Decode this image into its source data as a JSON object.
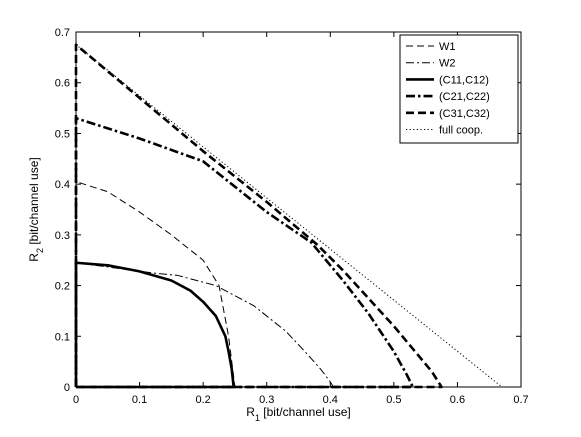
{
  "chart_data": {
    "type": "line",
    "xlabel": "R",
    "xlabel_sub": "1",
    "xlabel_unit": " [bit/channel use]",
    "ylabel": "R",
    "ylabel_sub": "2",
    "ylabel_unit": " [bit/channel use]",
    "xlim": [
      0,
      0.7
    ],
    "ylim": [
      0,
      0.7
    ],
    "xticks": [
      0,
      0.1,
      0.2,
      0.3,
      0.4,
      0.5,
      0.6,
      0.7
    ],
    "xtick_labels": [
      "0",
      "0.1",
      "0.2",
      "0.3",
      "0.4",
      "0.5",
      "0.6",
      "0.7"
    ],
    "yticks": [
      0,
      0.1,
      0.2,
      0.3,
      0.4,
      0.5,
      0.6,
      0.7
    ],
    "ytick_labels": [
      "0",
      "0.1",
      "0.2",
      "0.3",
      "0.4",
      "0.5",
      "0.6",
      "0.7"
    ],
    "grid": false,
    "legend_position": "top-right",
    "series": [
      {
        "name": "W1",
        "style": "dashed-thin",
        "x": [
          0,
          0,
          0.05,
          0.1,
          0.15,
          0.2,
          0.225,
          0.24,
          0.25
        ],
        "y": [
          0,
          0.405,
          0.385,
          0.345,
          0.3,
          0.25,
          0.2,
          0.1,
          0
        ],
        "close_to_origin": true
      },
      {
        "name": "W2",
        "style": "dashdot-thin",
        "x": [
          0,
          0,
          0.12,
          0.16,
          0.22,
          0.28,
          0.33,
          0.36,
          0.385,
          0.4,
          0.405
        ],
        "y": [
          0,
          0.245,
          0.225,
          0.22,
          0.2,
          0.16,
          0.11,
          0.07,
          0.035,
          0.01,
          0
        ],
        "close_to_origin": true
      },
      {
        "name": "(C11,C12)",
        "style": "solid-thick",
        "x": [
          0,
          0,
          0.05,
          0.1,
          0.15,
          0.18,
          0.2,
          0.22,
          0.235,
          0.24,
          0.245,
          0.248
        ],
        "y": [
          0,
          0.245,
          0.24,
          0.228,
          0.21,
          0.19,
          0.168,
          0.14,
          0.1,
          0.07,
          0.035,
          0
        ],
        "close_to_origin": true
      },
      {
        "name": "(C21,C22)",
        "style": "dashdot-thick",
        "x": [
          0,
          0,
          0.1,
          0.2,
          0.3,
          0.37,
          0.38,
          0.42,
          0.46,
          0.5,
          0.52,
          0.53
        ],
        "y": [
          0,
          0.53,
          0.49,
          0.445,
          0.345,
          0.285,
          0.27,
          0.21,
          0.145,
          0.07,
          0.025,
          0
        ],
        "close_to_origin": true
      },
      {
        "name": "(C31,C32)",
        "style": "dashed-thick",
        "x": [
          0,
          0,
          0.1,
          0.2,
          0.3,
          0.38,
          0.42,
          0.46,
          0.5,
          0.53,
          0.56,
          0.575
        ],
        "y": [
          0,
          0.675,
          0.57,
          0.465,
          0.365,
          0.28,
          0.23,
          0.175,
          0.12,
          0.075,
          0.03,
          0
        ],
        "close_to_origin": true
      },
      {
        "name": "full coop.",
        "style": "dotted",
        "x": [
          0,
          0,
          0.67
        ],
        "y": [
          0,
          0.675,
          0
        ],
        "close_to_origin": true
      }
    ]
  }
}
